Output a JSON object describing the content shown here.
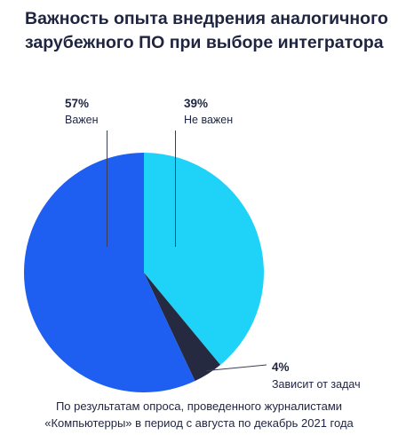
{
  "chart_data": {
    "type": "pie",
    "title": "Важность опыта внедрения аналогичного зарубежного ПО при выборе интегратора",
    "slices": [
      {
        "label": "Важен",
        "value": 57,
        "value_label": "57%",
        "color": "#1e5ef0"
      },
      {
        "label": "Не важен",
        "value": 39,
        "value_label": "39%",
        "color": "#1fd2f8"
      },
      {
        "label": "Зависит от задач",
        "value": 4,
        "value_label": "4%",
        "color": "#262a40"
      }
    ]
  },
  "caption": {
    "line1": "По результатам опроса, проведенного журналистами",
    "line2": "«Компьютерры» в период с августа по декабрь 2021 года"
  }
}
